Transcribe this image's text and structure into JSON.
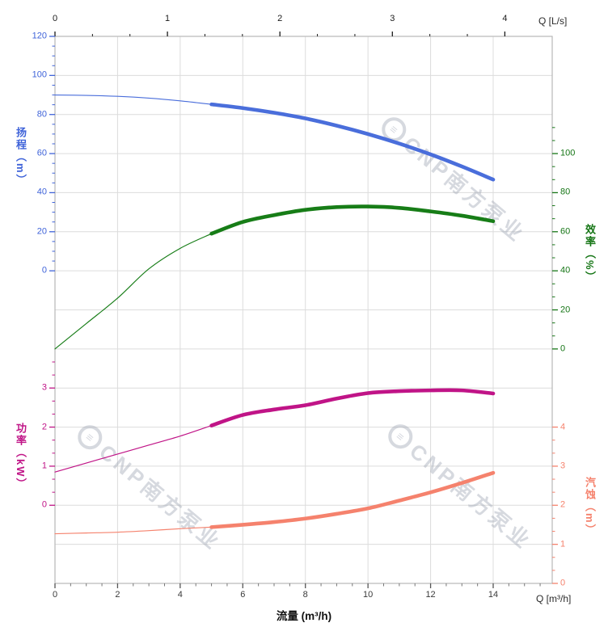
{
  "watermark": {
    "text": "CNP南方泵业",
    "logo_glyph": "≡"
  },
  "axes": {
    "top": {
      "label": "Q [L/s]",
      "ticks": [
        0,
        1,
        2,
        3,
        4
      ],
      "range": [
        0,
        4
      ],
      "color": "#1a1a1a"
    },
    "bottom": {
      "label": "Q [m³/h]",
      "title": "流量 (m³/h)",
      "ticks": [
        0,
        2,
        4,
        6,
        8,
        10,
        12,
        14
      ],
      "range": [
        0,
        14
      ],
      "color": "#3a3a3a"
    },
    "head": {
      "title": "扬程（m）",
      "ticks": [
        120,
        100,
        80,
        60,
        40,
        20,
        0
      ],
      "range": [
        0,
        120
      ],
      "color": "#3f63d9"
    },
    "efficiency": {
      "title": "效率（%）",
      "ticks": [
        100,
        80,
        60,
        40,
        20,
        0
      ],
      "range": [
        0,
        100
      ],
      "color": "#157515"
    },
    "power": {
      "title": "功率（kW）",
      "ticks": [
        3,
        2,
        1,
        0
      ],
      "range": [
        0,
        3
      ],
      "color": "#c01487"
    },
    "npsh": {
      "title": "汽蚀（m）",
      "ticks": [
        4,
        3,
        2,
        1,
        0
      ],
      "range": [
        0,
        4
      ],
      "color": "#f5826d"
    }
  },
  "chart_data": {
    "type": "line",
    "title": "",
    "xlabel": "流量 (m³/h)",
    "x_secondary_label": "Q [L/s]",
    "x": [
      0,
      1,
      2,
      3,
      4,
      5,
      6,
      7,
      8,
      9,
      10,
      11,
      12,
      13,
      14
    ],
    "x_range_mh": [
      0,
      14
    ],
    "x_range_ls": [
      0,
      4
    ],
    "grid": true,
    "series": [
      {
        "name": "扬程",
        "units": "m",
        "axis": "head",
        "color": "#4a6edb",
        "thick_from_x": 5,
        "values": [
          90,
          89.8,
          89.3,
          88.4,
          87,
          85.2,
          83.3,
          80.9,
          78,
          74.3,
          70,
          65.1,
          59.6,
          53.4,
          46.7
        ]
      },
      {
        "name": "效率",
        "units": "%",
        "axis": "efficiency",
        "color": "#177d17",
        "thick_from_x": 5,
        "values": [
          0,
          13,
          26,
          41,
          51.5,
          59,
          65,
          68.5,
          71.2,
          72.6,
          72.9,
          72.2,
          70.4,
          68.2,
          65.4
        ]
      },
      {
        "name": "功率",
        "units": "kW",
        "axis": "power",
        "color": "#c01487",
        "thick_from_x": 5,
        "values": [
          0.85,
          1.08,
          1.31,
          1.54,
          1.77,
          2.04,
          2.31,
          2.45,
          2.56,
          2.73,
          2.87,
          2.92,
          2.94,
          2.94,
          2.86
        ]
      },
      {
        "name": "汽蚀",
        "units": "m",
        "axis": "npsh",
        "color": "#f5826d",
        "thick_from_x": 5,
        "values": [
          1.27,
          1.29,
          1.31,
          1.35,
          1.4,
          1.44,
          1.5,
          1.57,
          1.66,
          1.78,
          1.92,
          2.12,
          2.33,
          2.57,
          2.83
        ]
      }
    ]
  }
}
